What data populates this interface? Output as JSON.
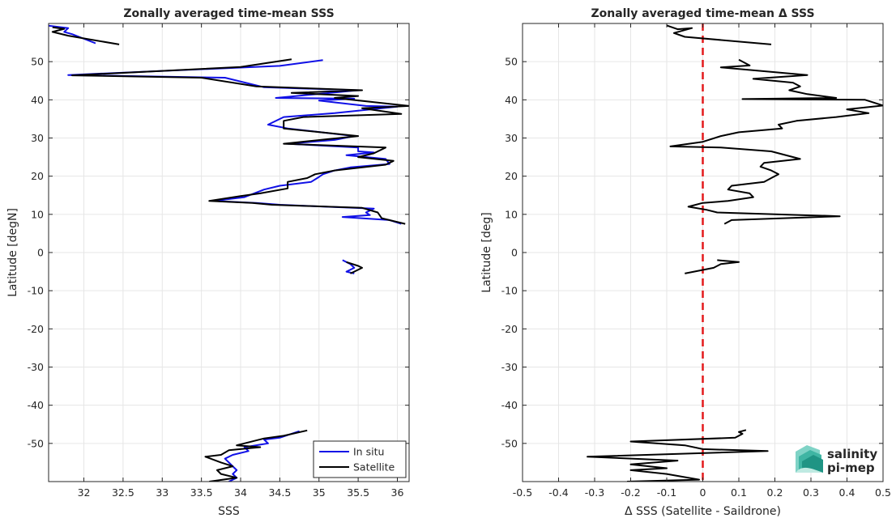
{
  "chart_data": [
    {
      "type": "line",
      "title": "Zonally averaged time-mean SSS",
      "xlabel": "SSS",
      "ylabel": "Latitude [degN]",
      "xlim": [
        31.55,
        36.15
      ],
      "ylim": [
        -60,
        60
      ],
      "xticks": [
        32,
        32.5,
        33,
        33.5,
        34,
        34.5,
        35,
        35.5,
        36
      ],
      "yticks": [
        -50,
        -40,
        -30,
        -20,
        -10,
        0,
        10,
        20,
        30,
        40,
        50
      ],
      "grid": true,
      "legend": {
        "placement": "bottom-right",
        "entries": [
          "In situ",
          "Satellite"
        ]
      },
      "series": [
        {
          "name": "In situ",
          "color": "#1010e6",
          "segments": [
            [
              [
                31.55,
                59.4
              ],
              [
                31.8,
                58.8
              ],
              [
                31.75,
                57.8
              ],
              [
                31.85,
                57.2
              ],
              [
                32.15,
                54.8
              ]
            ],
            [
              [
                35.05,
                50.4
              ],
              [
                34.5,
                48.9
              ],
              [
                31.8,
                46.5
              ],
              [
                33.8,
                45.8
              ],
              [
                34.3,
                43.3
              ],
              [
                35.5,
                42.5
              ],
              [
                34.45,
                40.5
              ],
              [
                35.45,
                40.3
              ],
              [
                35.0,
                39.8
              ],
              [
                35.6,
                38.4
              ],
              [
                36.0,
                38.2
              ],
              [
                35.2,
                36.5
              ],
              [
                34.55,
                35.5
              ],
              [
                34.35,
                33.5
              ],
              [
                34.6,
                32.5
              ],
              [
                35.45,
                30.5
              ],
              [
                35.2,
                29.5
              ],
              [
                34.6,
                28.5
              ],
              [
                35.5,
                27.5
              ],
              [
                35.5,
                26.5
              ],
              [
                35.7,
                26.2
              ],
              [
                35.35,
                25.5
              ],
              [
                35.85,
                24.5
              ],
              [
                35.9,
                23.2
              ],
              [
                35.4,
                22.3
              ],
              [
                35.2,
                21.5
              ],
              [
                35.05,
                20.5
              ],
              [
                35.0,
                19.8
              ],
              [
                34.9,
                18.5
              ],
              [
                34.5,
                17.5
              ],
              [
                34.3,
                16.5
              ],
              [
                34.05,
                14.5
              ],
              [
                33.65,
                13.5
              ],
              [
                34.2,
                13.0
              ],
              [
                34.5,
                12.5
              ],
              [
                35.7,
                11.5
              ],
              [
                35.6,
                10.5
              ],
              [
                35.65,
                9.8
              ],
              [
                35.3,
                9.3
              ],
              [
                35.9,
                8.5
              ],
              [
                36.05,
                7.5
              ]
            ],
            [
              [
                35.3,
                -2
              ],
              [
                35.4,
                -3
              ],
              [
                35.45,
                -4
              ],
              [
                35.35,
                -5
              ],
              [
                35.45,
                -5.5
              ]
            ],
            [
              [
                34.75,
                -46.8
              ],
              [
                34.5,
                -48.5
              ],
              [
                34.3,
                -49.0
              ],
              [
                34.35,
                -50
              ],
              [
                34.05,
                -51
              ],
              [
                34.1,
                -52
              ],
              [
                33.9,
                -53
              ],
              [
                33.8,
                -54
              ],
              [
                33.85,
                -55
              ],
              [
                33.9,
                -56
              ],
              [
                33.95,
                -57
              ],
              [
                33.9,
                -58
              ],
              [
                33.95,
                -59
              ],
              [
                33.85,
                -60
              ]
            ]
          ]
        },
        {
          "name": "Satellite",
          "color": "#000000",
          "segments": [
            [
              [
                31.6,
                59.0
              ],
              [
                31.75,
                58.6
              ],
              [
                31.6,
                57.8
              ],
              [
                31.8,
                56.8
              ],
              [
                32.45,
                54.5
              ]
            ],
            [
              [
                34.65,
                50.6
              ],
              [
                34.0,
                48.6
              ],
              [
                31.85,
                46.4
              ],
              [
                33.5,
                45.8
              ],
              [
                34.2,
                43.5
              ],
              [
                35.55,
                42.5
              ],
              [
                34.65,
                41.8
              ],
              [
                35.5,
                41.0
              ],
              [
                35.2,
                40.5
              ],
              [
                36.15,
                38.4
              ],
              [
                35.55,
                37.8
              ],
              [
                36.05,
                36.3
              ],
              [
                34.8,
                35.5
              ],
              [
                34.55,
                34.5
              ],
              [
                34.55,
                32.5
              ],
              [
                35.5,
                30.5
              ],
              [
                34.55,
                28.5
              ],
              [
                35.85,
                27.5
              ],
              [
                35.7,
                26.0
              ],
              [
                35.5,
                25.0
              ],
              [
                35.95,
                24.0
              ],
              [
                35.85,
                23.0
              ],
              [
                35.2,
                21.5
              ],
              [
                34.95,
                20.5
              ],
              [
                34.85,
                19.5
              ],
              [
                34.6,
                18.5
              ],
              [
                34.6,
                16.8
              ],
              [
                34.25,
                15.5
              ],
              [
                34.0,
                14.8
              ],
              [
                33.6,
                13.5
              ],
              [
                34.15,
                13.0
              ],
              [
                34.4,
                12.5
              ],
              [
                35.55,
                11.7
              ],
              [
                35.75,
                10.5
              ],
              [
                35.8,
                9.0
              ],
              [
                36.1,
                7.5
              ]
            ],
            [
              [
                35.35,
                -2.5
              ],
              [
                35.5,
                -3.5
              ],
              [
                35.55,
                -4.0
              ],
              [
                35.45,
                -5.0
              ],
              [
                35.4,
                -5.5
              ]
            ],
            [
              [
                34.85,
                -46.6
              ],
              [
                34.55,
                -48.0
              ],
              [
                34.3,
                -48.7
              ],
              [
                33.95,
                -50.5
              ],
              [
                34.25,
                -51.0
              ],
              [
                33.85,
                -51.8
              ],
              [
                33.75,
                -53.0
              ],
              [
                33.55,
                -53.5
              ],
              [
                33.75,
                -55.0
              ],
              [
                33.9,
                -56.0
              ],
              [
                33.7,
                -57.0
              ],
              [
                33.75,
                -58.0
              ],
              [
                33.95,
                -59.0
              ],
              [
                33.6,
                -60.0
              ]
            ]
          ]
        }
      ]
    },
    {
      "type": "line",
      "title": "Zonally averaged time-mean Δ SSS",
      "xlabel": "Δ SSS (Satellite - Saildrone)",
      "ylabel": "Latitude [deg]",
      "xlim": [
        -0.5,
        0.5
      ],
      "ylim": [
        -60,
        60
      ],
      "xticks": [
        -0.5,
        -0.4,
        -0.3,
        -0.2,
        -0.1,
        0,
        0.1,
        0.2,
        0.3,
        0.4,
        0.5
      ],
      "yticks": [
        -50,
        -40,
        -30,
        -20,
        -10,
        0,
        10,
        20,
        30,
        40,
        50
      ],
      "grid": true,
      "reference_line": {
        "x": 0,
        "color": "#e31a1c",
        "style": "dashed"
      },
      "series": [
        {
          "color": "#000000",
          "segments": [
            [
              [
                -0.1,
                59.5
              ],
              [
                -0.07,
                58.5
              ],
              [
                -0.03,
                58.8
              ],
              [
                -0.08,
                57.5
              ],
              [
                -0.05,
                56.5
              ],
              [
                0.19,
                54.5
              ]
            ],
            [
              [
                0.1,
                50.5
              ],
              [
                0.13,
                49.0
              ],
              [
                0.05,
                48.5
              ],
              [
                0.29,
                46.5
              ],
              [
                0.14,
                45.5
              ],
              [
                0.25,
                44.5
              ],
              [
                0.27,
                43.5
              ],
              [
                0.24,
                42.5
              ],
              [
                0.29,
                41.5
              ],
              [
                0.37,
                40.5
              ],
              [
                0.11,
                40.2
              ],
              [
                0.45,
                40.0
              ],
              [
                0.5,
                38.5
              ],
              [
                0.4,
                37.5
              ],
              [
                0.46,
                36.5
              ],
              [
                0.37,
                35.5
              ],
              [
                0.26,
                34.5
              ],
              [
                0.21,
                33.5
              ],
              [
                0.22,
                32.5
              ],
              [
                0.1,
                31.5
              ],
              [
                0.05,
                30.5
              ],
              [
                0.0,
                29.0
              ],
              [
                -0.09,
                27.8
              ],
              [
                0.05,
                27.5
              ],
              [
                0.19,
                26.5
              ],
              [
                0.27,
                24.5
              ],
              [
                0.17,
                23.5
              ],
              [
                0.16,
                22.5
              ],
              [
                0.19,
                21.5
              ],
              [
                0.21,
                20.5
              ],
              [
                0.19,
                19.5
              ],
              [
                0.17,
                18.5
              ],
              [
                0.08,
                17.5
              ],
              [
                0.07,
                16.5
              ],
              [
                0.13,
                15.5
              ],
              [
                0.14,
                14.5
              ],
              [
                0.07,
                13.5
              ],
              [
                0.0,
                13.0
              ],
              [
                -0.04,
                12.0
              ],
              [
                0.01,
                11.2
              ],
              [
                0.04,
                10.5
              ],
              [
                0.38,
                9.5
              ],
              [
                0.08,
                8.5
              ],
              [
                0.06,
                7.5
              ]
            ],
            [
              [
                0.04,
                -2
              ],
              [
                0.1,
                -2.5
              ],
              [
                0.05,
                -3.0
              ],
              [
                0.03,
                -4.0
              ],
              [
                -0.05,
                -5.5
              ]
            ],
            [
              [
                0.12,
                -46.5
              ],
              [
                0.1,
                -47.0
              ],
              [
                0.11,
                -47.5
              ],
              [
                0.09,
                -48.5
              ],
              [
                -0.2,
                -49.5
              ],
              [
                -0.05,
                -50.5
              ],
              [
                0.0,
                -51.5
              ],
              [
                0.18,
                -52.0
              ],
              [
                -0.32,
                -53.5
              ],
              [
                -0.07,
                -54.5
              ],
              [
                -0.2,
                -55.5
              ],
              [
                -0.1,
                -56.5
              ],
              [
                -0.2,
                -57.0
              ],
              [
                -0.1,
                -58.0
              ],
              [
                -0.01,
                -59.5
              ],
              [
                -0.21,
                -60
              ]
            ]
          ]
        }
      ]
    }
  ],
  "logo": {
    "line1": "salinity",
    "line2": "pi-mep"
  }
}
